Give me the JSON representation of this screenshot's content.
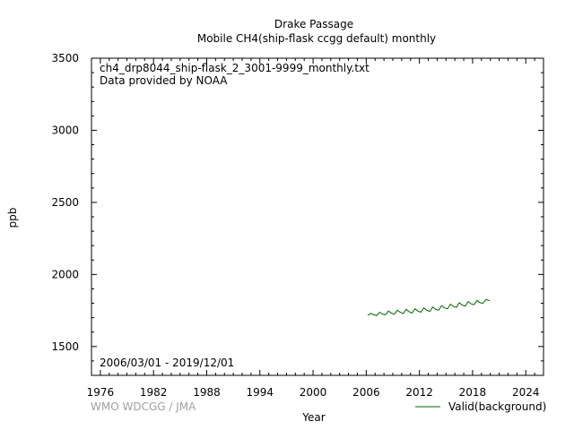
{
  "title": {
    "line1": "Drake Passage",
    "line2": "Mobile    CH4(ship-flask ccgg default) monthly"
  },
  "annotations": {
    "filename": "ch4_drp8044_ship-flask_2_3001-9999_monthly.txt",
    "provider": "Data provided by NOAA",
    "date_range": "2006/03/01 - 2019/12/01"
  },
  "credit": "WMO WDCGG / JMA",
  "colors": {
    "series": "#006400",
    "credit": "#a0a0a0"
  },
  "chart_data": {
    "type": "line",
    "xlabel": "Year",
    "ylabel": "ppb",
    "xlim": [
      1975,
      2026
    ],
    "ylim": [
      1300,
      3500
    ],
    "xticks": [
      1976,
      1982,
      1988,
      1994,
      2000,
      2006,
      2012,
      2018,
      2024
    ],
    "yticks": [
      1500,
      2000,
      2500,
      3000,
      3500
    ],
    "grid": false,
    "legend": "bottom-right",
    "series": [
      {
        "name": "Valid(background)",
        "x": [
          2006.17,
          2006.5,
          2006.83,
          2007.17,
          2007.5,
          2007.83,
          2008.17,
          2008.5,
          2008.83,
          2009.17,
          2009.5,
          2009.83,
          2010.17,
          2010.5,
          2010.83,
          2011.17,
          2011.5,
          2011.83,
          2012.17,
          2012.5,
          2012.83,
          2013.17,
          2013.5,
          2013.83,
          2014.17,
          2014.5,
          2014.83,
          2015.17,
          2015.5,
          2015.83,
          2016.17,
          2016.5,
          2016.83,
          2017.17,
          2017.5,
          2017.83,
          2018.17,
          2018.5,
          2018.83,
          2019.17,
          2019.5,
          2019.92
        ],
        "y": [
          1716,
          1730,
          1722,
          1714,
          1738,
          1726,
          1720,
          1746,
          1732,
          1724,
          1752,
          1738,
          1728,
          1758,
          1742,
          1732,
          1762,
          1746,
          1738,
          1768,
          1752,
          1744,
          1774,
          1758,
          1752,
          1784,
          1768,
          1762,
          1794,
          1778,
          1772,
          1804,
          1788,
          1780,
          1812,
          1796,
          1790,
          1820,
          1804,
          1800,
          1826,
          1818
        ]
      }
    ]
  }
}
